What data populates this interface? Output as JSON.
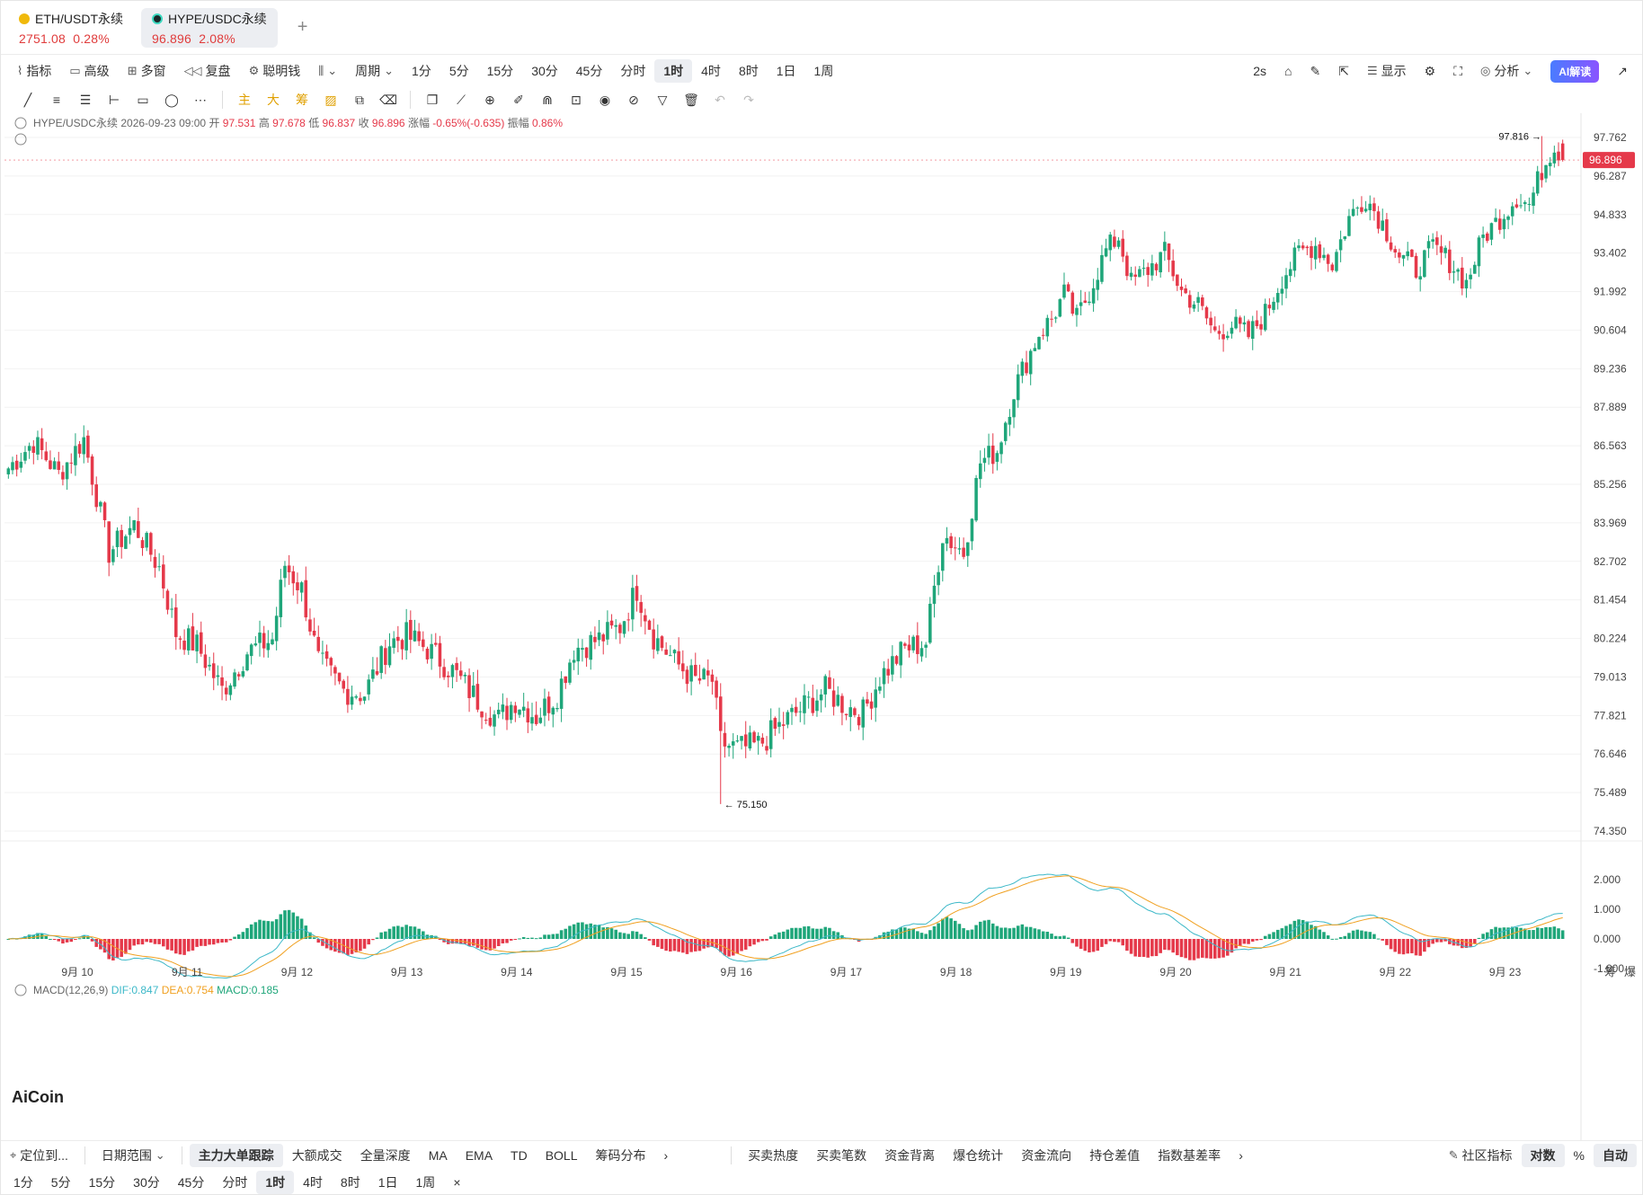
{
  "tabs": [
    {
      "name": "ETH/USDT永续",
      "price": "2751.08",
      "change": "0.28%",
      "coin_color": "#f0b90b"
    },
    {
      "name": "HYPE/USDC永续",
      "price": "96.896",
      "change": "2.08%",
      "coin_color": "#1a2a2a"
    }
  ],
  "toolbar": {
    "left": [
      "指标",
      "高级",
      "多窗",
      "复盘",
      "聪明钱"
    ],
    "period_label": "周期",
    "periods": [
      "1分",
      "5分",
      "15分",
      "30分",
      "45分",
      "分时",
      "1时",
      "4时",
      "8时",
      "1日",
      "1周"
    ],
    "selected_period": "1时",
    "right": {
      "interval": "2s",
      "display": "显示",
      "analysis": "分析",
      "ai": "AI解读"
    }
  },
  "drawbar": {
    "icons": [
      "trend-line-icon",
      "parallel-channel-icon",
      "lines-icon",
      "horizontal-ray-icon",
      "rectangle-icon",
      "ellipse-icon",
      "more-icon"
    ],
    "labels": [
      "主",
      "大",
      "筹"
    ],
    "right_icons": [
      "copy-icon",
      "ruler-icon",
      "zoom-icon",
      "brush-icon",
      "magnet-icon",
      "lock-icon",
      "visibility-icon",
      "hide-icon",
      "filter-icon",
      "trash-icon",
      "undo-icon",
      "redo-icon"
    ]
  },
  "ohlc": {
    "symbol": "HYPE/USDC永续",
    "time": "2026-09-23 09:00",
    "open_label": "开",
    "open": "97.531",
    "high_label": "高",
    "high": "97.678",
    "low_label": "低",
    "low": "96.837",
    "close_label": "收",
    "close": "96.896",
    "chg_label": "涨幅",
    "chg": "-0.65%(-0.635)",
    "amp_label": "振幅",
    "amp": "0.86%"
  },
  "macd_legend": {
    "name": "MACD(12,26,9)",
    "dif": "DIF:0.847",
    "dea": "DEA:0.754",
    "macd": "MACD:0.185"
  },
  "price_axis": [
    "97.762",
    "96.287",
    "94.833",
    "93.402",
    "91.992",
    "90.604",
    "89.236",
    "87.889",
    "86.563",
    "85.256",
    "83.969",
    "82.702",
    "81.454",
    "80.224",
    "79.013",
    "77.821",
    "76.646",
    "75.489",
    "74.350"
  ],
  "last_price": "96.896",
  "high_marker": "97.816",
  "low_marker": "75.150",
  "macd_axis": [
    "2.000",
    "1.000",
    "0.000",
    "-1.000"
  ],
  "date_axis": [
    "9月 10",
    "9月 11",
    "9月 12",
    "9月 13",
    "9月 14",
    "9月 15",
    "9月 16",
    "9月 17",
    "9月 18",
    "9月 19",
    "9月 20",
    "9月 21",
    "9月 22",
    "9月 23"
  ],
  "axis_corner": [
    "筹",
    "爆"
  ],
  "watermark": "AiCoin",
  "colors": {
    "up": "#1fa67a",
    "down": "#e5394a",
    "dif": "#3cb8c8",
    "dea": "#f0a020",
    "accent": "#e5394a"
  },
  "chart_data": {
    "type": "candlestick",
    "symbol": "HYPE/USDC永续",
    "interval": "1时",
    "anchors": [
      [
        0,
        85.8
      ],
      [
        6,
        86.7
      ],
      [
        12,
        85.6
      ],
      [
        18,
        86.8
      ],
      [
        24,
        83.0
      ],
      [
        30,
        83.9
      ],
      [
        36,
        82.5
      ],
      [
        40,
        80.4
      ],
      [
        45,
        80.0
      ],
      [
        51,
        78.6
      ],
      [
        57,
        79.8
      ],
      [
        63,
        80.2
      ],
      [
        66,
        82.6
      ],
      [
        70,
        81.8
      ],
      [
        74,
        79.5
      ],
      [
        80,
        78.6
      ],
      [
        85,
        78.5
      ],
      [
        91,
        80.1
      ],
      [
        95,
        80.3
      ],
      [
        100,
        79.9
      ],
      [
        106,
        79.2
      ],
      [
        112,
        78.3
      ],
      [
        117,
        77.7
      ],
      [
        121,
        78.3
      ],
      [
        126,
        77.8
      ],
      [
        131,
        78.5
      ],
      [
        135,
        79.9
      ],
      [
        141,
        80.2
      ],
      [
        146,
        80.6
      ],
      [
        150,
        81.8
      ],
      [
        154,
        80.3
      ],
      [
        159,
        79.5
      ],
      [
        164,
        78.9
      ],
      [
        168,
        78.9
      ],
      [
        170,
        77.0
      ],
      [
        174,
        76.8
      ],
      [
        179,
        76.9
      ],
      [
        185,
        77.6
      ],
      [
        190,
        78.1
      ],
      [
        195,
        78.6
      ],
      [
        200,
        78.1
      ],
      [
        204,
        77.9
      ],
      [
        208,
        79.0
      ],
      [
        214,
        79.9
      ],
      [
        219,
        80.1
      ],
      [
        223,
        83.6
      ],
      [
        228,
        83.0
      ],
      [
        232,
        86.0
      ],
      [
        236,
        86.4
      ],
      [
        240,
        88.5
      ],
      [
        243,
        89.5
      ],
      [
        246,
        90.5
      ],
      [
        249,
        91.0
      ],
      [
        252,
        91.9
      ],
      [
        255,
        91.0
      ],
      [
        258,
        92.0
      ],
      [
        262,
        93.5
      ],
      [
        265,
        94.0
      ],
      [
        268,
        92.3
      ],
      [
        272,
        92.8
      ],
      [
        276,
        93.4
      ],
      [
        280,
        92.0
      ],
      [
        284,
        91.5
      ],
      [
        288,
        90.5
      ],
      [
        292,
        90.8
      ],
      [
        296,
        90.4
      ],
      [
        300,
        91.2
      ],
      [
        304,
        92.5
      ],
      [
        308,
        93.4
      ],
      [
        312,
        93.7
      ],
      [
        316,
        93.0
      ],
      [
        320,
        94.7
      ],
      [
        324,
        95.5
      ],
      [
        328,
        94.5
      ],
      [
        332,
        93.3
      ],
      [
        336,
        92.8
      ],
      [
        340,
        93.6
      ],
      [
        344,
        93.1
      ],
      [
        348,
        92.3
      ],
      [
        352,
        94.0
      ],
      [
        356,
        94.7
      ],
      [
        360,
        95.5
      ],
      [
        363,
        95.2
      ],
      [
        366,
        96.5
      ],
      [
        369,
        97.5
      ],
      [
        371,
        96.9
      ]
    ]
  }
}
